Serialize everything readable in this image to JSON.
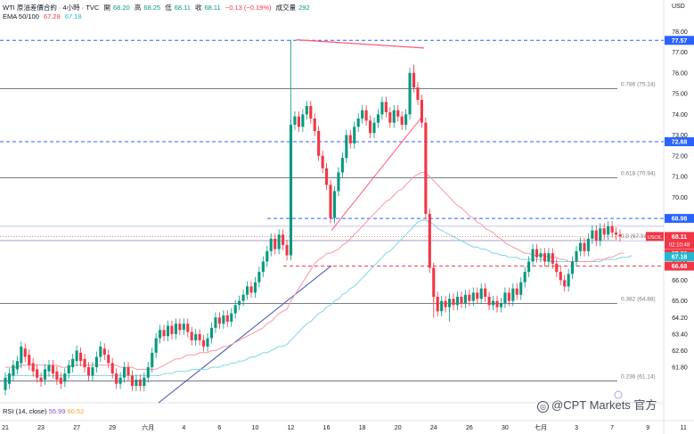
{
  "header": {
    "symbol_line": "WTI 原油差價合約 · 4小時 · TVC",
    "open_label": "開",
    "open": "68.20",
    "high_label": "高",
    "high": "68.25",
    "low_label": "低",
    "low": "68.11",
    "close_label": "收",
    "close": "68.11",
    "change": "−0.13 (−0.19%)",
    "volume_label": "成交量",
    "volume": "292",
    "ema_label": "EMA 50/100",
    "ema50": "67.28",
    "ema100": "67.18"
  },
  "rsi": {
    "label": "RSI (14, close)",
    "value1": "55.99",
    "value2": "60.52"
  },
  "axis_currency": "USD",
  "watermark": "@CPT Markets 官方",
  "colors": {
    "up": "#089981",
    "down": "#f23645",
    "ema50": "#f23645",
    "ema100": "#22b8cf",
    "fib": "#787b86",
    "dashed_blue": "#2962ff",
    "dashed_red": "#f23645",
    "trend_blue": "#3f51b5",
    "trend_red": "#ff5a7a"
  },
  "chart_data": {
    "type": "candlestick",
    "ylim": [
      60.6,
      78.4
    ],
    "y_ticks": [
      "78.00",
      "77.00",
      "76.00",
      "75.00",
      "74.00",
      "73.00",
      "72.00",
      "71.00",
      "70.00",
      "69.00",
      "68.00",
      "67.00",
      "66.00",
      "65.00",
      "64.20",
      "63.40",
      "62.60",
      "61.80"
    ],
    "x_ticks": [
      {
        "label": "21",
        "i": 0
      },
      {
        "label": "23",
        "i": 9
      },
      {
        "label": "27",
        "i": 18
      },
      {
        "label": "29",
        "i": 27
      },
      {
        "label": "六月",
        "i": 36
      },
      {
        "label": "4",
        "i": 45
      },
      {
        "label": "6",
        "i": 54
      },
      {
        "label": "10",
        "i": 63
      },
      {
        "label": "12",
        "i": 72
      },
      {
        "label": "16",
        "i": 81
      },
      {
        "label": "18",
        "i": 90
      },
      {
        "label": "20",
        "i": 99
      },
      {
        "label": "24",
        "i": 108
      },
      {
        "label": "26",
        "i": 117
      },
      {
        "label": "30",
        "i": 126
      },
      {
        "label": "七月",
        "i": 135
      },
      {
        "label": "3",
        "i": 144
      },
      {
        "label": "7",
        "i": 153
      },
      {
        "label": "9",
        "i": 162
      },
      {
        "label": "11",
        "i": 171
      },
      {
        "label": "1",
        "i": 180
      }
    ],
    "fib_levels": [
      {
        "label": "0.786 (75.24)",
        "value": 75.24
      },
      {
        "label": "0.618 (70.94)",
        "value": 70.94
      },
      {
        "label": "0.5 (67.91)",
        "value": 67.91
      },
      {
        "label": "0.382 (64.88)",
        "value": 64.88
      },
      {
        "label": "0.236 (61.14)",
        "value": 61.14
      }
    ],
    "dashed_levels": [
      {
        "value": 77.57,
        "color": "blue",
        "label": "77.57"
      },
      {
        "value": 72.68,
        "color": "blue",
        "label": "72.68"
      },
      {
        "value": 68.98,
        "color": "blue",
        "label": "68.98"
      },
      {
        "value": 66.68,
        "color": "red",
        "label": "66.68"
      }
    ],
    "price_tags": [
      {
        "value": 68.11,
        "label": "68.11",
        "sub": "02:10:48",
        "name": "USOIL",
        "color": "#f23645"
      },
      {
        "value": 67.28,
        "label": "67.28",
        "color": "#f23645"
      },
      {
        "value": 67.18,
        "label": "67.18",
        "color": "#22b8cf"
      }
    ],
    "candles": [
      [
        60.7,
        61.3
      ],
      [
        61.0,
        61.5
      ],
      [
        61.4,
        61.9
      ],
      [
        61.7,
        62.1
      ],
      [
        62.0,
        62.8
      ],
      [
        62.7,
        62.3
      ],
      [
        62.4,
        61.9
      ],
      [
        62.0,
        61.6
      ],
      [
        61.7,
        61.3
      ],
      [
        61.3,
        61.1
      ],
      [
        61.2,
        61.7
      ],
      [
        61.6,
        61.9
      ],
      [
        61.9,
        61.5
      ],
      [
        61.6,
        61.2
      ],
      [
        61.3,
        61.0
      ],
      [
        61.1,
        61.5
      ],
      [
        61.5,
        61.9
      ],
      [
        61.8,
        62.2
      ],
      [
        62.1,
        62.6
      ],
      [
        62.5,
        62.1
      ],
      [
        62.2,
        61.8
      ],
      [
        61.8,
        61.4
      ],
      [
        61.4,
        61.8
      ],
      [
        61.8,
        62.3
      ],
      [
        62.3,
        62.8
      ],
      [
        62.7,
        62.4
      ],
      [
        62.4,
        62.0
      ],
      [
        62.0,
        61.5
      ],
      [
        61.5,
        61.0
      ],
      [
        61.0,
        61.3
      ],
      [
        61.3,
        61.8
      ],
      [
        61.8,
        61.4
      ],
      [
        61.4,
        60.9
      ],
      [
        60.9,
        61.2
      ],
      [
        61.2,
        60.9
      ],
      [
        60.9,
        61.3
      ],
      [
        61.3,
        61.8
      ],
      [
        61.8,
        62.5
      ],
      [
        62.5,
        63.2
      ],
      [
        63.2,
        63.6
      ],
      [
        63.6,
        63.3
      ],
      [
        63.3,
        63.8
      ],
      [
        63.8,
        63.4
      ],
      [
        63.4,
        63.9
      ],
      [
        63.9,
        63.6
      ],
      [
        63.6,
        63.9
      ],
      [
        63.9,
        63.5
      ],
      [
        63.5,
        63.1
      ],
      [
        63.1,
        63.4
      ],
      [
        63.4,
        63.1
      ],
      [
        63.1,
        62.8
      ],
      [
        62.8,
        63.2
      ],
      [
        63.2,
        63.7
      ],
      [
        63.7,
        64.2
      ],
      [
        64.2,
        63.9
      ],
      [
        63.9,
        64.3
      ],
      [
        64.3,
        64.0
      ],
      [
        64.0,
        64.4
      ],
      [
        64.4,
        64.8
      ],
      [
        64.8,
        65.0
      ],
      [
        65.0,
        65.3
      ],
      [
        65.3,
        65.7
      ],
      [
        65.7,
        65.4
      ],
      [
        65.4,
        65.9
      ],
      [
        65.9,
        66.4
      ],
      [
        66.4,
        66.9
      ],
      [
        66.9,
        67.4
      ],
      [
        67.4,
        68.0
      ],
      [
        68.0,
        67.5
      ],
      [
        67.5,
        68.2
      ],
      [
        68.2,
        67.7
      ],
      [
        67.7,
        67.2
      ],
      [
        67.2,
        73.5
      ],
      [
        73.5,
        73.9
      ],
      [
        73.9,
        73.4
      ],
      [
        73.4,
        74.0
      ],
      [
        74.0,
        74.4
      ],
      [
        74.4,
        73.8
      ],
      [
        73.8,
        73.2
      ],
      [
        73.2,
        72.0
      ],
      [
        72.0,
        71.4
      ],
      [
        71.4,
        70.6
      ],
      [
        70.6,
        69.0
      ],
      [
        69.0,
        70.3
      ],
      [
        70.3,
        71.2
      ],
      [
        71.2,
        71.9
      ],
      [
        71.9,
        73.0
      ],
      [
        73.0,
        72.6
      ],
      [
        72.6,
        73.4
      ],
      [
        73.4,
        73.8
      ],
      [
        73.8,
        74.2
      ],
      [
        74.2,
        73.7
      ],
      [
        73.7,
        73.1
      ],
      [
        73.1,
        73.6
      ],
      [
        73.6,
        74.0
      ],
      [
        74.0,
        74.6
      ],
      [
        74.6,
        74.1
      ],
      [
        74.1,
        73.6
      ],
      [
        73.6,
        74.2
      ],
      [
        74.2,
        73.9
      ],
      [
        73.9,
        73.5
      ],
      [
        73.5,
        74.0
      ],
      [
        74.0,
        76.0
      ],
      [
        76.0,
        75.3
      ],
      [
        75.3,
        74.7
      ],
      [
        74.7,
        73.6
      ],
      [
        73.6,
        69.2
      ],
      [
        69.2,
        66.6
      ],
      [
        66.6,
        65.2
      ],
      [
        65.2,
        64.5
      ],
      [
        64.5,
        65.0
      ],
      [
        65.0,
        64.7
      ],
      [
        64.7,
        65.1
      ],
      [
        65.1,
        64.8
      ],
      [
        64.8,
        65.2
      ],
      [
        65.2,
        64.9
      ],
      [
        64.9,
        65.3
      ],
      [
        65.3,
        65.0
      ],
      [
        65.0,
        65.4
      ],
      [
        65.4,
        65.1
      ],
      [
        65.1,
        65.6
      ],
      [
        65.6,
        65.2
      ],
      [
        65.2,
        64.8
      ],
      [
        64.8,
        65.0
      ],
      [
        65.0,
        64.7
      ],
      [
        64.7,
        64.9
      ],
      [
        64.9,
        65.4
      ],
      [
        65.4,
        65.0
      ],
      [
        65.0,
        65.6
      ],
      [
        65.6,
        65.3
      ],
      [
        65.3,
        65.9
      ],
      [
        65.9,
        66.4
      ],
      [
        66.4,
        66.9
      ],
      [
        66.9,
        67.5
      ],
      [
        67.5,
        67.1
      ],
      [
        67.1,
        67.3
      ],
      [
        67.3,
        66.9
      ],
      [
        66.9,
        67.3
      ],
      [
        67.3,
        66.8
      ],
      [
        66.8,
        66.4
      ],
      [
        66.4,
        66.0
      ],
      [
        66.0,
        65.7
      ],
      [
        65.7,
        66.3
      ],
      [
        66.3,
        66.9
      ],
      [
        66.9,
        67.4
      ],
      [
        67.4,
        67.8
      ],
      [
        67.8,
        67.4
      ],
      [
        67.4,
        68.0
      ],
      [
        68.0,
        68.4
      ],
      [
        68.4,
        67.9
      ],
      [
        67.9,
        68.5
      ],
      [
        68.5,
        68.2
      ],
      [
        68.2,
        68.6
      ],
      [
        68.6,
        68.3
      ],
      [
        68.3,
        68.2
      ],
      [
        68.2,
        68.11
      ]
    ],
    "ema50": [
      61.8,
      61.8,
      61.8,
      61.8,
      61.9,
      61.9,
      61.9,
      61.9,
      61.9,
      61.9,
      61.9,
      61.9,
      61.9,
      61.9,
      61.8,
      61.8,
      61.8,
      61.9,
      61.9,
      61.9,
      61.9,
      61.9,
      61.9,
      61.9,
      61.9,
      61.9,
      61.9,
      61.9,
      61.9,
      61.8,
      61.8,
      61.8,
      61.8,
      61.7,
      61.7,
      61.7,
      61.7,
      61.7,
      61.7,
      61.8,
      61.9,
      62.0,
      62.1,
      62.2,
      62.2,
      62.3,
      62.4,
      62.4,
      62.4,
      62.5,
      62.5,
      62.5,
      62.6,
      62.6,
      62.7,
      62.8,
      62.8,
      62.9,
      63.0,
      63.1,
      63.2,
      63.3,
      63.4,
      63.5,
      63.6,
      63.7,
      63.9,
      64.0,
      64.2,
      64.4,
      64.5,
      64.6,
      65.0,
      65.3,
      65.6,
      65.9,
      66.2,
      66.5,
      66.8,
      67.0,
      67.1,
      67.3,
      67.3,
      67.4,
      67.5,
      67.7,
      67.8,
      68.0,
      68.2,
      68.4,
      68.6,
      68.8,
      69.0,
      69.2,
      69.4,
      69.6,
      69.8,
      69.9,
      70.1,
      70.3,
      70.4,
      70.6,
      70.8,
      71.0,
      71.1,
      71.2,
      71.2,
      71.0,
      70.8,
      70.6,
      70.4,
      70.2,
      70.0,
      69.8,
      69.6,
      69.5,
      69.3,
      69.1,
      69.0,
      68.8,
      68.7,
      68.5,
      68.4,
      68.3,
      68.1,
      68.0,
      67.8,
      67.7,
      67.6,
      67.5,
      67.4,
      67.3,
      67.3,
      67.2,
      67.2,
      67.2,
      67.2,
      67.1,
      67.1,
      67.1,
      67.0,
      67.0,
      66.9,
      66.9,
      66.9,
      66.9,
      66.9,
      66.9,
      66.9,
      67.0,
      67.0,
      67.0,
      67.1,
      67.1,
      67.2,
      67.3,
      67.3
    ],
    "ema100": [
      61.4,
      61.4,
      61.4,
      61.4,
      61.4,
      61.4,
      61.4,
      61.4,
      61.4,
      61.4,
      61.4,
      61.4,
      61.4,
      61.4,
      61.4,
      61.4,
      61.4,
      61.4,
      61.4,
      61.4,
      61.4,
      61.4,
      61.4,
      61.4,
      61.4,
      61.4,
      61.4,
      61.4,
      61.4,
      61.4,
      61.4,
      61.4,
      61.4,
      61.4,
      61.4,
      61.4,
      61.4,
      61.4,
      61.4,
      61.4,
      61.5,
      61.5,
      61.5,
      61.6,
      61.6,
      61.6,
      61.6,
      61.7,
      61.7,
      61.7,
      61.7,
      61.7,
      61.8,
      61.8,
      61.8,
      61.9,
      61.9,
      62.0,
      62.0,
      62.1,
      62.1,
      62.2,
      62.3,
      62.3,
      62.4,
      62.5,
      62.5,
      62.6,
      62.7,
      62.8,
      62.8,
      62.9,
      63.1,
      63.3,
      63.5,
      63.7,
      63.9,
      64.0,
      64.2,
      64.4,
      64.5,
      64.7,
      64.8,
      65.0,
      65.1,
      65.3,
      65.4,
      65.6,
      65.7,
      65.9,
      66.1,
      66.3,
      66.5,
      66.7,
      66.9,
      67.1,
      67.3,
      67.4,
      67.6,
      67.8,
      68.0,
      68.2,
      68.4,
      68.6,
      68.8,
      68.9,
      68.9,
      68.8,
      68.7,
      68.5,
      68.4,
      68.3,
      68.2,
      68.1,
      68.0,
      67.9,
      67.8,
      67.7,
      67.6,
      67.6,
      67.5,
      67.5,
      67.4,
      67.3,
      67.3,
      67.2,
      67.2,
      67.1,
      67.1,
      67.1,
      67.0,
      67.0,
      67.0,
      67.0,
      67.0,
      67.0,
      67.0,
      66.9,
      66.9,
      66.9,
      66.9,
      66.9,
      66.9,
      66.9,
      66.9,
      66.9,
      66.9,
      66.9,
      66.9,
      66.9,
      66.9,
      67.0,
      67.0,
      67.0,
      67.0,
      67.1,
      67.1,
      67.1,
      67.2
    ]
  }
}
